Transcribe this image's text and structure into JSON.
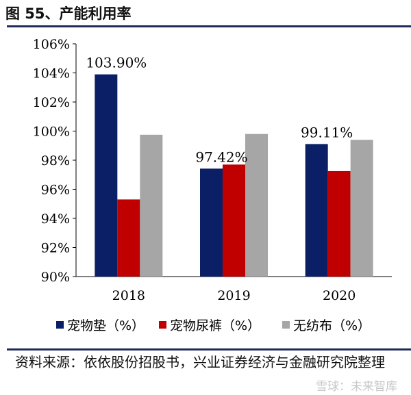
{
  "title": "图 55、产能利用率",
  "source": "资料来源：依依股份招股书，兴业证券经济与金融研究院整理",
  "watermark": "雪球：未来智库",
  "chart_data": {
    "type": "bar",
    "title": "产能利用率",
    "categories": [
      "2018",
      "2019",
      "2020"
    ],
    "series": [
      {
        "name": "宠物垫（%）",
        "color": "#0a1f66",
        "values": [
          103.9,
          97.42,
          99.11
        ]
      },
      {
        "name": "宠物尿裤（%）",
        "color": "#c00000",
        "values": [
          95.3,
          97.7,
          97.25
        ]
      },
      {
        "name": "无纺布（%）",
        "color": "#a6a6a6",
        "values": [
          99.75,
          99.8,
          99.4
        ]
      }
    ],
    "data_labels": [
      "103.90%",
      "97.42%",
      "99.11%"
    ],
    "ylim": [
      90,
      106
    ],
    "yticks": [
      "90%",
      "92%",
      "94%",
      "96%",
      "98%",
      "100%",
      "102%",
      "104%",
      "106%"
    ],
    "legend": "bottom",
    "grid": false
  }
}
